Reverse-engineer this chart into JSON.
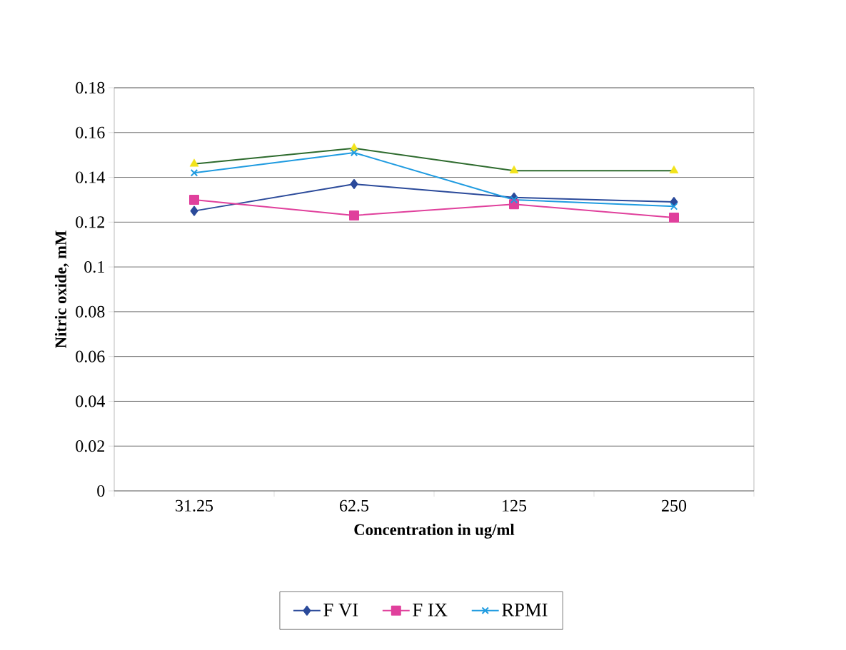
{
  "chart_data": {
    "type": "line",
    "xlabel": "Concentration in ug/ml",
    "ylabel": "Nitric oxide, mM",
    "categories": [
      "31.25",
      "62.5",
      "125",
      "250"
    ],
    "series": [
      {
        "name": "F VI",
        "color": "#2b4a9a",
        "marker": "diamond",
        "values": [
          0.125,
          0.137,
          0.131,
          0.129
        ]
      },
      {
        "name": "F IX",
        "color": "#e0409c",
        "marker": "square",
        "values": [
          0.13,
          0.123,
          0.128,
          0.122
        ]
      },
      {
        "color": "#2e6b2e",
        "colors": [
          "#f2e31a",
          "#f2e31a",
          "#f2e31a",
          "#f2e31a"
        ],
        "marker": "triangle",
        "values": [
          0.146,
          0.153,
          0.143,
          0.143
        ]
      },
      {
        "name": "RPMI",
        "color": "#1f9be0",
        "marker": "cross",
        "values": [
          0.142,
          0.151,
          0.13,
          0.127
        ]
      }
    ],
    "ylim": [
      0,
      0.18
    ],
    "yticks": [
      0,
      0.02,
      0.04,
      0.06,
      0.08,
      0.1,
      0.12,
      0.14,
      0.16,
      0.18
    ],
    "grid": "y",
    "legend": "bottom",
    "line_style": "solid"
  }
}
